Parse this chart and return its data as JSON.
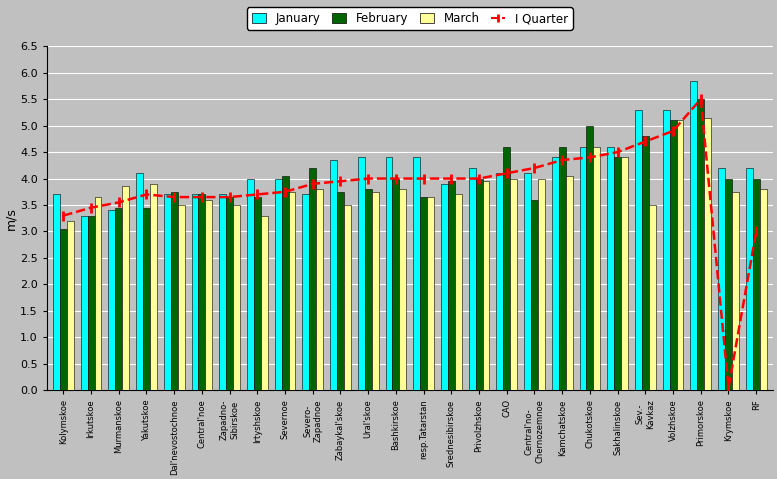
{
  "categories": [
    "Kolymskoe",
    "Irkutskoe",
    "Murmanskoe",
    "Yakutskoe",
    "Dal'nevostochnoe",
    "Central'noe",
    "Zapadno-\nSibirskoe",
    "Irtyshskoe",
    "Severnoe",
    "Severo-\nZapadnoe",
    "Zabaykal'skoe",
    "Ural'skoe",
    "Bashkirskoe",
    "resp.Tatarstan",
    "Srednesibirskoe",
    "Privolzhskoe",
    "CAO",
    "Central'no-\nChernozemnoe",
    "Kamchatskoe",
    "Chukotskoe",
    "Sakhalinskoe",
    "Sev.-\nKavkaz",
    "Volzhskoe",
    "Primorskoe",
    "Krymskoe",
    "RF"
  ],
  "january": [
    3.7,
    3.3,
    3.4,
    4.1,
    3.7,
    3.7,
    3.7,
    4.0,
    4.0,
    3.7,
    4.35,
    4.4,
    4.4,
    4.4,
    3.9,
    4.2,
    4.1,
    4.1,
    4.4,
    4.6,
    4.6,
    5.3,
    5.3,
    5.85,
    4.2,
    4.2
  ],
  "february": [
    3.05,
    3.3,
    3.45,
    3.45,
    3.75,
    3.7,
    3.65,
    3.65,
    4.05,
    4.2,
    3.75,
    3.8,
    4.0,
    3.65,
    3.95,
    4.0,
    4.6,
    3.6,
    4.6,
    5.0,
    4.4,
    4.8,
    5.1,
    5.5,
    4.0,
    4.0
  ],
  "march": [
    3.2,
    3.65,
    3.85,
    3.9,
    3.5,
    3.6,
    3.5,
    3.3,
    3.75,
    3.8,
    3.5,
    3.75,
    3.8,
    3.65,
    3.7,
    3.95,
    4.0,
    4.0,
    4.05,
    4.6,
    4.4,
    3.5,
    5.1,
    5.15,
    3.75,
    3.8
  ],
  "quarter": [
    3.3,
    3.45,
    3.55,
    3.7,
    3.65,
    3.65,
    3.65,
    3.7,
    3.75,
    3.9,
    3.95,
    4.0,
    4.0,
    4.0,
    4.0,
    4.0,
    4.1,
    4.2,
    4.35,
    4.4,
    4.5,
    4.7,
    4.9,
    5.5,
    0.05,
    3.0
  ],
  "bar_width": 0.25,
  "colors": {
    "january": "#00FFFF",
    "february": "#006400",
    "march": "#FFFF99",
    "quarter_line": "#FF0000"
  },
  "ylabel": "m/s",
  "ylim": [
    0,
    6.5
  ],
  "yticks": [
    0,
    0.5,
    1.0,
    1.5,
    2.0,
    2.5,
    3.0,
    3.5,
    4.0,
    4.5,
    5.0,
    5.5,
    6.0,
    6.5
  ],
  "background_color": "#C0C0C0",
  "figure_color": "#C0C0C0",
  "legend_labels": [
    "January",
    "February",
    "March",
    "I Quarter"
  ]
}
